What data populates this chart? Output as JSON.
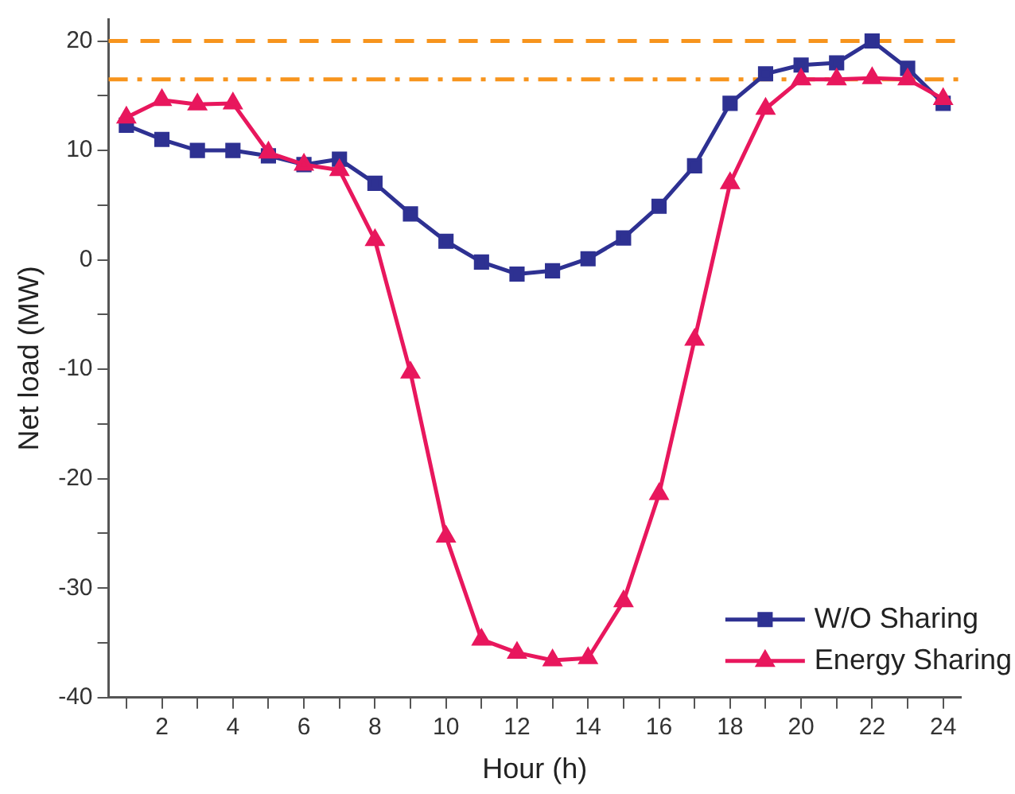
{
  "chart_data": {
    "type": "line",
    "xlabel": "Hour (h)",
    "ylabel": "Net load (MW)",
    "x": [
      1,
      2,
      3,
      4,
      5,
      6,
      7,
      8,
      9,
      10,
      11,
      12,
      13,
      14,
      15,
      16,
      17,
      18,
      19,
      20,
      21,
      22,
      23,
      24
    ],
    "series": [
      {
        "name": "W/O Sharing",
        "color": "#2e3192",
        "marker": "square",
        "values": [
          12.3,
          11,
          10,
          10,
          9.5,
          8.7,
          9.2,
          7,
          4.2,
          1.7,
          -0.2,
          -1.3,
          -1,
          0.1,
          2,
          4.9,
          8.6,
          14.3,
          17,
          17.8,
          18,
          20,
          17.5,
          14.3
        ]
      },
      {
        "name": "Energy Sharing",
        "color": "#e8175d",
        "marker": "triangle",
        "values": [
          13,
          14.6,
          14.2,
          14.3,
          9.8,
          8.7,
          8.2,
          1.8,
          -10.3,
          -25.3,
          -34.7,
          -35.9,
          -36.6,
          -36.4,
          -31.2,
          -21.4,
          -7.3,
          7,
          13.8,
          16.5,
          16.5,
          16.6,
          16.5,
          14.7
        ]
      }
    ],
    "xlim": [
      0.5,
      24.5
    ],
    "xticks": [
      {
        "value": 1,
        "label": null
      },
      2,
      {
        "value": 3,
        "label": null
      },
      4,
      {
        "value": 5,
        "label": null
      },
      6,
      {
        "value": 7,
        "label": null
      },
      8,
      {
        "value": 9,
        "label": null
      },
      10,
      {
        "value": 11,
        "label": null
      },
      12,
      {
        "value": 13,
        "label": null
      },
      14,
      {
        "value": 15,
        "label": null
      },
      16,
      {
        "value": 17,
        "label": null
      },
      18,
      {
        "value": 19,
        "label": null
      },
      20,
      {
        "value": 21,
        "label": null
      },
      22,
      {
        "value": 23,
        "label": null
      },
      24
    ],
    "ylim": [
      -40,
      22
    ],
    "yticks": [
      -40,
      {
        "value": -35,
        "label": null
      },
      -30,
      {
        "value": -25,
        "label": null
      },
      -20,
      {
        "value": -15,
        "label": null
      },
      -10,
      {
        "value": -5,
        "label": null
      },
      0,
      {
        "value": 5,
        "label": null
      },
      10,
      {
        "value": 15,
        "label": null
      },
      20
    ],
    "ref_lines": [
      {
        "axis": "y",
        "value": 20,
        "color": "#f7941d",
        "line_style": "dashed"
      },
      {
        "axis": "y",
        "value": 16.5,
        "color": "#f7941d",
        "line_style": "dashdot"
      }
    ],
    "grid": false,
    "legend": "bottom right",
    "line_style": "solid"
  }
}
